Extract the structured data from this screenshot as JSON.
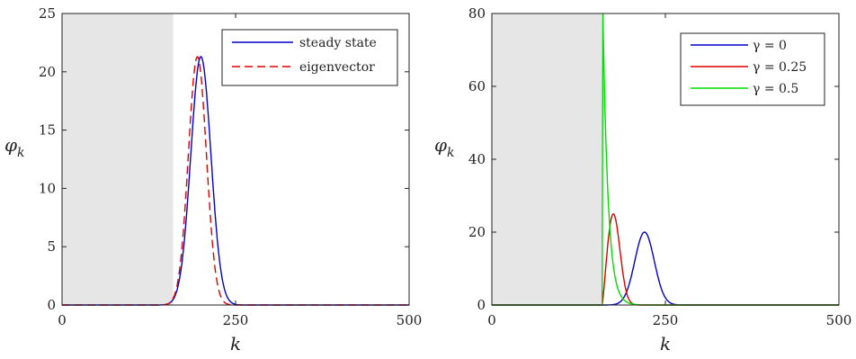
{
  "chart_data": [
    {
      "type": "line",
      "xlabel": "k",
      "ylabel_main": "φ",
      "ylabel_sub": "k",
      "xlim": [
        0,
        500
      ],
      "ylim": [
        0,
        25
      ],
      "xticks": [
        0,
        250,
        500
      ],
      "yticks": [
        0,
        5,
        10,
        15,
        20,
        25
      ],
      "xtick_labels": [
        "0",
        "250",
        "500"
      ],
      "ytick_labels": [
        "0",
        "5",
        "10",
        "15",
        "20",
        "25"
      ],
      "shaded_region": [
        0,
        160
      ],
      "shade_color": "#e6e6e6",
      "legend_position": "top-right",
      "grid": false,
      "series": [
        {
          "name": "steady state",
          "color": "#0000cc",
          "style": "solid",
          "peak_x": 200,
          "peak_y": 21.3,
          "width": 14.5,
          "x_sample": [
            160,
            180,
            190,
            200,
            210,
            220,
            240,
            260
          ],
          "y_sample": [
            0,
            8.0,
            16.7,
            21.3,
            16.7,
            8.0,
            0.5,
            0
          ]
        },
        {
          "name": "eigenvector",
          "color": "#dd0000",
          "style": "dashed",
          "peak_x": 195,
          "peak_y": 21.3,
          "width": 13.0,
          "x_sample": [
            160,
            175,
            185,
            195,
            205,
            215,
            235,
            255
          ],
          "y_sample": [
            0,
            6.8,
            15.8,
            21.3,
            15.8,
            6.8,
            0.3,
            0
          ]
        }
      ]
    },
    {
      "type": "line",
      "xlabel": "k",
      "ylabel_main": "φ",
      "ylabel_sub": "k",
      "xlim": [
        0,
        500
      ],
      "ylim": [
        0,
        80
      ],
      "xticks": [
        0,
        250,
        500
      ],
      "yticks": [
        0,
        20,
        40,
        60,
        80
      ],
      "xtick_labels": [
        "0",
        "250",
        "500"
      ],
      "ytick_labels": [
        "0",
        "20",
        "40",
        "60",
        "80"
      ],
      "shaded_region": [
        0,
        160
      ],
      "shade_color": "#e6e6e6",
      "legend_position": "top-right",
      "grid": false,
      "series": [
        {
          "name": "γ = 0",
          "color": "#0000cc",
          "style": "solid",
          "peak_x": 220,
          "peak_y": 20,
          "width": 14,
          "x_sample": [
            180,
            200,
            210,
            220,
            230,
            240,
            260
          ],
          "y_sample": [
            0.3,
            7.2,
            15.6,
            20,
            15.6,
            7.2,
            0.3
          ]
        },
        {
          "name": "γ = 0.25",
          "color": "#dd0000",
          "style": "solid",
          "peak_x": 175,
          "peak_y": 25,
          "x_sample": [
            160,
            165,
            175,
            185,
            195,
            210,
            220
          ],
          "y_sample": [
            0,
            15,
            25,
            19,
            8,
            1,
            0
          ]
        },
        {
          "name": "γ = 0.5",
          "color": "#00dd00",
          "style": "solid",
          "peak_x": 160,
          "peak_y": 80,
          "x_sample": [
            160,
            165,
            170,
            175,
            180,
            190
          ],
          "y_sample": [
            80,
            45,
            22,
            10,
            4,
            0
          ]
        }
      ]
    }
  ]
}
